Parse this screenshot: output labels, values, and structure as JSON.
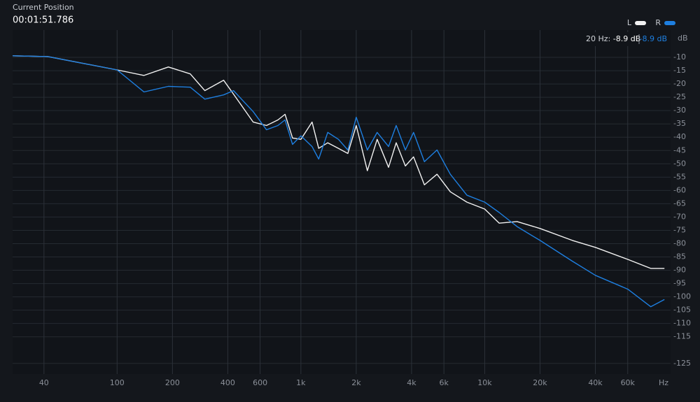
{
  "header": {
    "label": "Current Position",
    "time": "00:01:51.786"
  },
  "readout": {
    "frequency": "20 Hz:",
    "left": "-8.9 dB",
    "right": "-8.9 dB"
  },
  "chart_data": {
    "type": "line",
    "y_label": "dB",
    "x_label": "Hz",
    "log_x": true,
    "grid": true,
    "legend": "top-right",
    "xlim": [
      27,
      100000
    ],
    "ylim": [
      0,
      -129
    ],
    "xticks": [
      40,
      100,
      200,
      400,
      600,
      {
        "value": 1000,
        "label": "1k"
      },
      {
        "value": 2000,
        "label": "2k"
      },
      {
        "value": 4000,
        "label": "4k"
      },
      {
        "value": 6000,
        "label": "6k"
      },
      {
        "value": 10000,
        "label": "10k"
      },
      {
        "value": 20000,
        "label": "20k"
      },
      {
        "value": 40000,
        "label": "40k"
      },
      {
        "value": 60000,
        "label": "60k"
      }
    ],
    "yticks": [
      -10,
      -15,
      -20,
      -25,
      -30,
      -35,
      -40,
      -45,
      -50,
      -55,
      -60,
      -65,
      -70,
      -75,
      -80,
      -85,
      -90,
      -95,
      -100,
      -105,
      -110,
      -115,
      -125
    ],
    "x": [
      27,
      42,
      100,
      140,
      190,
      250,
      300,
      380,
      430,
      550,
      650,
      750,
      820,
      900,
      1000,
      1150,
      1250,
      1400,
      1600,
      1800,
      2000,
      2300,
      2600,
      3000,
      3300,
      3700,
      4100,
      4700,
      5500,
      6500,
      8000,
      10000,
      12000,
      15000,
      20000,
      30000,
      40000,
      60000,
      80000,
      95000
    ],
    "series": [
      {
        "name": "L",
        "color": "#f2f2f2",
        "values": [
          -9.4,
          -9.7,
          -14.7,
          -16.8,
          -13.6,
          -16.2,
          -22.5,
          -18.6,
          -23.8,
          -34.3,
          -35.6,
          -33.5,
          -31.4,
          -40.3,
          -40.8,
          -34.3,
          -44.2,
          -42.1,
          -44.2,
          -46.1,
          -35.6,
          -52.6,
          -40.8,
          -51.3,
          -42.1,
          -50.8,
          -47.4,
          -57.9,
          -53.9,
          -60.5,
          -64.4,
          -67,
          -72.3,
          -71.7,
          -74.3,
          -78.8,
          -81.4,
          -85.9,
          -89.3,
          -89.3
        ]
      },
      {
        "name": "R",
        "color": "#1e7fe0",
        "values": [
          -9.4,
          -9.7,
          -14.7,
          -23,
          -20.9,
          -21.2,
          -25.7,
          -24.1,
          -22.5,
          -30.4,
          -37.2,
          -35.6,
          -33.5,
          -42.7,
          -39.5,
          -43.5,
          -48.2,
          -38.2,
          -40.8,
          -44.8,
          -32.5,
          -44.8,
          -38.2,
          -43.5,
          -35.6,
          -44.8,
          -38.2,
          -49.2,
          -44.8,
          -53.9,
          -61.8,
          -64.4,
          -68.3,
          -73.6,
          -78.8,
          -86.6,
          -91.9,
          -97.1,
          -103.7,
          -101
        ]
      }
    ]
  }
}
